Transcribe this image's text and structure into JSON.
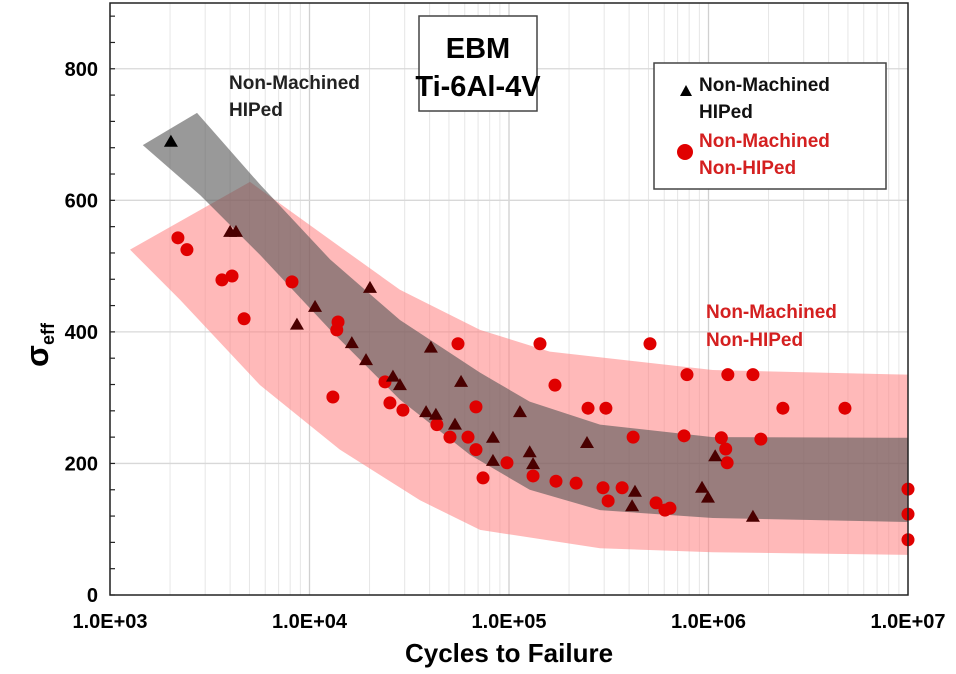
{
  "chart_data": {
    "type": "scatter",
    "title": "EBM\nTi-6Al-4V",
    "title_lines": [
      "EBM",
      "Ti-6Al-4V"
    ],
    "xlabel": "Cycles to Failure",
    "ylabel": "σ",
    "ylabel_sub": "eff",
    "x_scale": "log",
    "xlim": [
      1000,
      10000000
    ],
    "ylim": [
      0,
      900
    ],
    "x_ticks": [
      "1.0E+03",
      "1.0E+04",
      "1.0E+05",
      "1.0E+06",
      "1.0E+07"
    ],
    "x_tick_values": [
      1000,
      10000,
      100000,
      1000000,
      10000000
    ],
    "y_ticks": [
      "0",
      "200",
      "400",
      "600",
      "800"
    ],
    "y_tick_values": [
      0,
      200,
      400,
      600,
      800
    ],
    "grid": true,
    "legend_placement": "top-right",
    "annotations": [
      {
        "lines": [
          "Non-Machined",
          "HIPed"
        ],
        "color": "#222222"
      },
      {
        "lines": [
          "Non-Machined",
          "Non-HIPed"
        ],
        "color": "#d42020"
      }
    ],
    "series": [
      {
        "name": "Non-Machined HIPed",
        "legend_lines": [
          "Non-Machined",
          "HIPed"
        ],
        "marker": "triangle",
        "color": "#000000",
        "band_color": "#555555",
        "points": [
          [
            2020,
            689
          ],
          [
            4000,
            552
          ],
          [
            4280,
            552
          ],
          [
            8650,
            411
          ],
          [
            10660,
            438
          ],
          [
            20100,
            467
          ],
          [
            16300,
            383
          ],
          [
            19200,
            357
          ],
          [
            26200,
            332
          ],
          [
            28400,
            319
          ],
          [
            40600,
            376
          ],
          [
            57500,
            324
          ],
          [
            38400,
            278
          ],
          [
            43000,
            274
          ],
          [
            53600,
            259
          ],
          [
            83100,
            239
          ],
          [
            83100,
            204
          ],
          [
            113500,
            278
          ],
          [
            127000,
            217
          ],
          [
            132000,
            199
          ],
          [
            246000,
            231
          ],
          [
            428000,
            157
          ],
          [
            414000,
            135
          ],
          [
            928000,
            163
          ],
          [
            994000,
            148
          ],
          [
            1080000,
            211
          ],
          [
            1670000,
            119
          ]
        ],
        "band_upper": [
          [
            1460,
            684
          ],
          [
            2730,
            733
          ],
          [
            5650,
            624
          ],
          [
            12700,
            510
          ],
          [
            28400,
            418
          ],
          [
            71600,
            338
          ],
          [
            127000,
            294
          ],
          [
            286000,
            259
          ],
          [
            1050000,
            240
          ],
          [
            10000000,
            239
          ]
        ],
        "band_lower": [
          [
            1460,
            684
          ],
          [
            2830,
            608
          ],
          [
            5650,
            517
          ],
          [
            12700,
            403
          ],
          [
            28400,
            297
          ],
          [
            63800,
            213
          ],
          [
            127000,
            160
          ],
          [
            286000,
            129
          ],
          [
            1050000,
            117
          ],
          [
            10000000,
            111
          ]
        ]
      },
      {
        "name": "Non-Machined Non-HIPed",
        "legend_lines": [
          "Non-Machined",
          "Non-HIPed"
        ],
        "marker": "circle",
        "color": "#e00000",
        "band_color": "#ff8080",
        "points": [
          [
            2190,
            543
          ],
          [
            2430,
            525
          ],
          [
            3640,
            479
          ],
          [
            4090,
            485
          ],
          [
            4700,
            420
          ],
          [
            8170,
            476
          ],
          [
            13100,
            301
          ],
          [
            13900,
            415
          ],
          [
            13700,
            403
          ],
          [
            23900,
            324
          ],
          [
            25300,
            292
          ],
          [
            29400,
            281
          ],
          [
            43500,
            259
          ],
          [
            50600,
            240
          ],
          [
            62300,
            240
          ],
          [
            68300,
            221
          ],
          [
            68300,
            286
          ],
          [
            74100,
            178
          ],
          [
            55500,
            382
          ],
          [
            97700,
            201
          ],
          [
            143000,
            382
          ],
          [
            509000,
            382
          ],
          [
            780000,
            335
          ],
          [
            1250000,
            335
          ],
          [
            1670000,
            335
          ],
          [
            170000,
            319
          ],
          [
            249000,
            284
          ],
          [
            306000,
            284
          ],
          [
            2360000,
            284
          ],
          [
            4830000,
            284
          ],
          [
            419000,
            240
          ],
          [
            754000,
            242
          ],
          [
            1160000,
            239
          ],
          [
            1220000,
            222
          ],
          [
            1240000,
            201
          ],
          [
            1830000,
            237
          ],
          [
            132000,
            181
          ],
          [
            172000,
            173
          ],
          [
            217000,
            170
          ],
          [
            296000,
            163
          ],
          [
            369000,
            163
          ],
          [
            314000,
            143
          ],
          [
            546000,
            140
          ],
          [
            605000,
            129
          ],
          [
            641000,
            132
          ],
          [
            10000000,
            161
          ],
          [
            10000000,
            123
          ],
          [
            10000000,
            84
          ]
        ],
        "band_upper": [
          [
            1260,
            525
          ],
          [
            5030,
            628
          ],
          [
            12700,
            540
          ],
          [
            28400,
            464
          ],
          [
            71600,
            403
          ],
          [
            160000,
            370
          ],
          [
            1050000,
            342
          ],
          [
            10000000,
            335
          ]
        ],
        "band_lower": [
          [
            1260,
            525
          ],
          [
            2240,
            449
          ],
          [
            5650,
            319
          ],
          [
            14200,
            221
          ],
          [
            35800,
            144
          ],
          [
            71600,
            99
          ],
          [
            286000,
            71
          ],
          [
            1050000,
            65
          ],
          [
            10000000,
            61
          ]
        ]
      }
    ]
  }
}
